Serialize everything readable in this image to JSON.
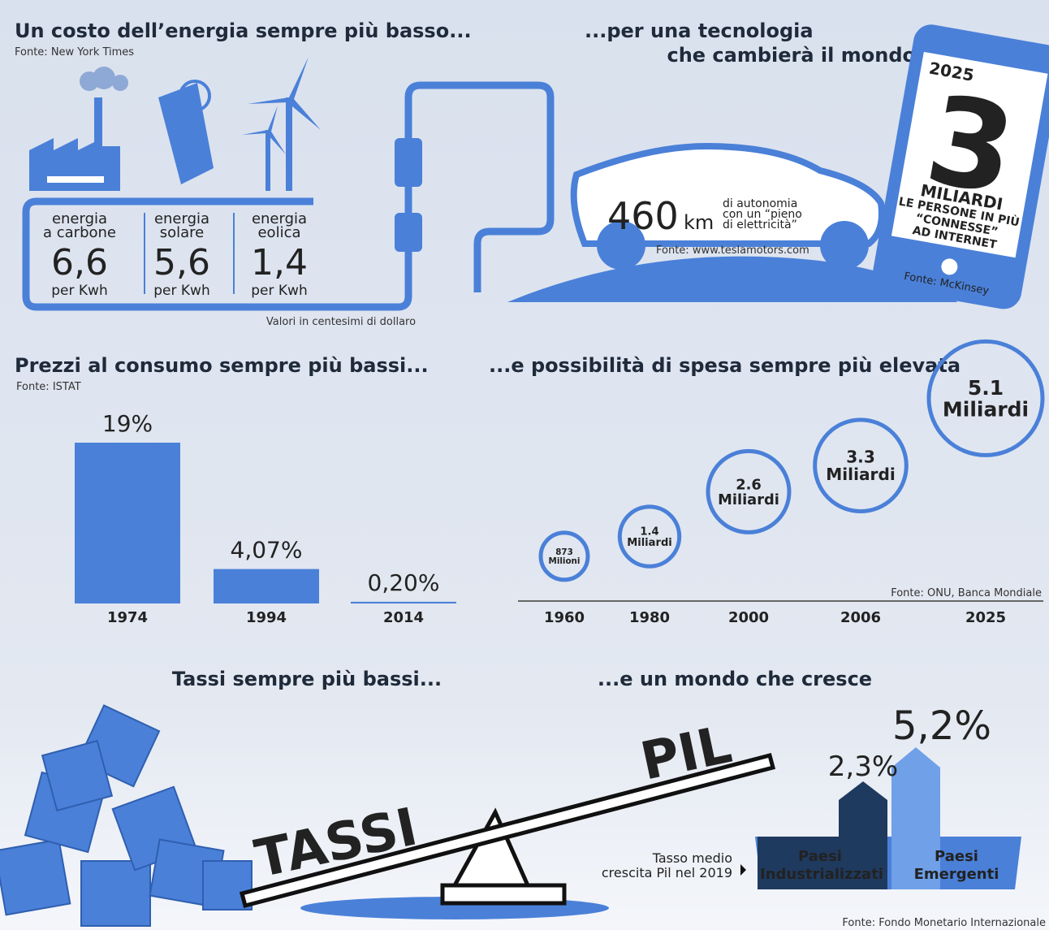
{
  "energy": {
    "title": "Un costo dell’energia sempre più basso...",
    "source": "Fonte: New York Times",
    "items": [
      {
        "label1": "energia",
        "label2": "a carbone",
        "value": "6,6",
        "unit": "per Kwh"
      },
      {
        "label1": "energia",
        "label2": "solare",
        "value": "5,6",
        "unit": "per Kwh"
      },
      {
        "label1": "energia",
        "label2": "eolica",
        "value": "1,4",
        "unit": "per Kwh"
      }
    ],
    "note": "Valori in centesimi di dollaro"
  },
  "tech": {
    "title1": "...per una tecnologia",
    "title2": "che cambierà il mondo"
  },
  "car": {
    "value": "460",
    "unit": "km",
    "desc1": "di autonomia",
    "desc2": "con un “pieno",
    "desc3": "di elettricità”",
    "source": "Fonte: www.teslamotors.com"
  },
  "phone": {
    "year": "2025",
    "number": "3",
    "lines": [
      "MILIARDI",
      "LE PERSONE IN PIÙ",
      "“CONNESSE”",
      "AD INTERNET"
    ],
    "source": "Fonte: McKinsey"
  },
  "chart_data": [
    {
      "type": "bar",
      "title": "Prezzi al consumo sempre più bassi...",
      "subtitle": "Fonte: ISTAT",
      "categories": [
        "1974",
        "1994",
        "2014"
      ],
      "values": [
        19,
        4.07,
        0.2
      ],
      "value_labels": [
        "19%",
        "4,07%",
        "0,20%"
      ],
      "color": "#4a80d8"
    },
    {
      "type": "bubble",
      "title": "...e possibilità di spesa sempre più elevata",
      "source": "Fonte: ONU, Banca Mondiale",
      "categories": [
        "1960",
        "1980",
        "2000",
        "2006",
        "2025"
      ],
      "values": [
        0.873,
        1.4,
        2.6,
        3.3,
        5.1
      ],
      "value_labels": [
        "873 Milioni",
        "1.4 Miliardi",
        "2.6 Miliardi",
        "3.3 Miliardi",
        "5.1 Miliardi"
      ],
      "color": "#4a80d8"
    }
  ],
  "rates": {
    "title": "Tassi sempre più bassi...",
    "left": "TASSI",
    "right": "PIL"
  },
  "growth": {
    "title": "...e un mondo che cresce",
    "caption1": "Tasso medio",
    "caption2": "crescita Pil nel 2019",
    "groups": [
      {
        "value": "2,3%",
        "label1": "Paesi",
        "label2": "Industrializzati"
      },
      {
        "value": "5,2%",
        "label1": "Paesi",
        "label2": "Emergenti"
      }
    ],
    "source": "Fonte: Fondo Monetario Internazionale"
  }
}
